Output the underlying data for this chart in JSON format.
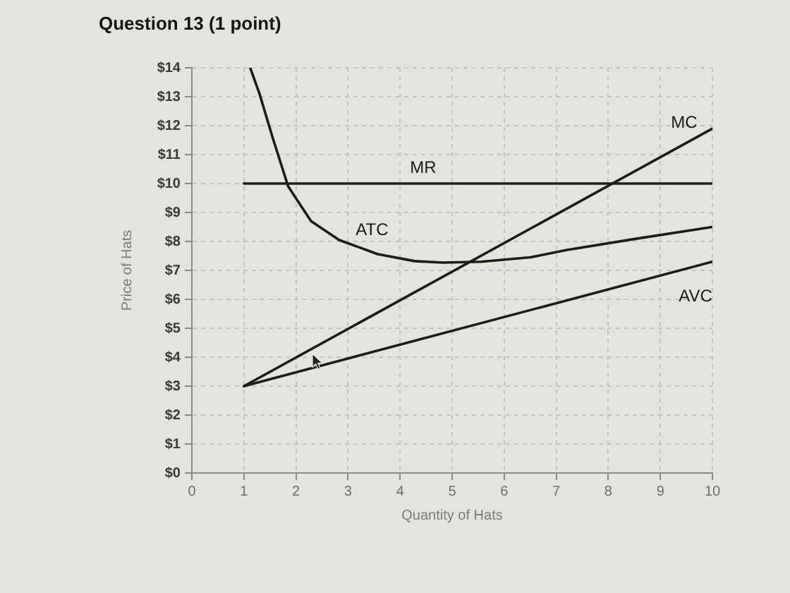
{
  "chart_data": {
    "type": "line",
    "title": "Question 13 (1 point)",
    "xlabel": "Quantity of Hats",
    "ylabel": "Price of Hats",
    "xlim": [
      0,
      10
    ],
    "ylim": [
      0,
      14
    ],
    "xticks": [
      0,
      1,
      2,
      3,
      4,
      5,
      6,
      7,
      8,
      9,
      10
    ],
    "yticks": [
      {
        "value": 0,
        "label": "$0"
      },
      {
        "value": 1,
        "label": "$1"
      },
      {
        "value": 2,
        "label": "$2"
      },
      {
        "value": 3,
        "label": "$3"
      },
      {
        "value": 4,
        "label": "$4"
      },
      {
        "value": 5,
        "label": "$5"
      },
      {
        "value": 6,
        "label": "$6"
      },
      {
        "value": 7,
        "label": "$7"
      },
      {
        "value": 8,
        "label": "$8"
      },
      {
        "value": 9,
        "label": "$9"
      },
      {
        "value": 10,
        "label": "$10"
      },
      {
        "value": 11,
        "label": "$11"
      },
      {
        "value": 12,
        "label": "$12"
      },
      {
        "value": 13,
        "label": "$13"
      },
      {
        "value": 14,
        "label": "$14"
      }
    ],
    "grid": true,
    "marker": "none",
    "line_style": "solid",
    "series": [
      {
        "name": "MR",
        "color": "#1c1c1c",
        "x": [
          1,
          10
        ],
        "values": [
          10,
          10
        ]
      },
      {
        "name": "MC",
        "color": "#1c1c1c",
        "x": [
          1,
          10
        ],
        "values": [
          3,
          11.9
        ]
      },
      {
        "name": "ATC",
        "color": "#1c1c1c",
        "x": [
          1.12,
          1.3,
          1.55,
          1.85,
          2.29,
          2.83,
          3.57,
          4.28,
          4.82,
          5.56,
          6.5,
          7.19,
          8.56,
          10
        ],
        "values": [
          14,
          13.1,
          11.6,
          9.9,
          8.7,
          8.05,
          7.56,
          7.32,
          7.27,
          7.3,
          7.45,
          7.7,
          8.1,
          8.5
        ]
      },
      {
        "name": "AVC",
        "color": "#1c1c1c",
        "x": [
          1,
          10
        ],
        "values": [
          3,
          7.3
        ]
      }
    ]
  }
}
